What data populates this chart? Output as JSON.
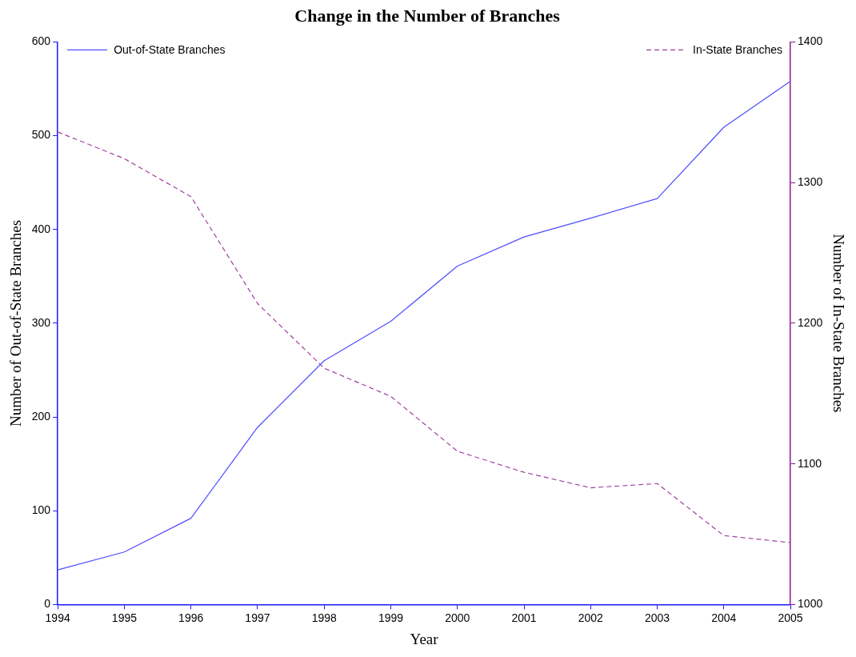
{
  "chart_data": {
    "type": "line",
    "title": "Change in the Number of Branches",
    "xlabel": "Year",
    "ylabel": "Number of Out-of-State Branches",
    "y2label": "Number of In-State Branches",
    "x": [
      1994,
      1995,
      1996,
      1997,
      1998,
      1999,
      2000,
      2001,
      2002,
      2003,
      2004,
      2005
    ],
    "series": [
      {
        "name": "Out-of-State Branches",
        "color": "#4d4dff",
        "line_style": "solid",
        "values": [
          37,
          56,
          92,
          189,
          260,
          302,
          361,
          392,
          412,
          433,
          509,
          558
        ]
      },
      {
        "name": "In-State Branches",
        "color": "#a040a0",
        "line_style": "dashed",
        "axis": "y2",
        "values": [
          1336,
          1317,
          1290,
          1214,
          1168,
          1148,
          1109,
          1094,
          1083,
          1086,
          1049,
          1044
        ]
      }
    ],
    "xlim": [
      1994,
      2005
    ],
    "xticks": [
      1994,
      1995,
      1996,
      1997,
      1998,
      1999,
      2000,
      2001,
      2002,
      2003,
      2004,
      2005
    ],
    "ylim": [
      0,
      600
    ],
    "yticks": [
      0,
      100,
      200,
      300,
      400,
      500,
      600
    ],
    "y2lim": [
      1000,
      1400
    ],
    "y2ticks": [
      1000,
      1100,
      1200,
      1300,
      1400
    ],
    "grid": false,
    "legend": "top",
    "marker": "none"
  }
}
